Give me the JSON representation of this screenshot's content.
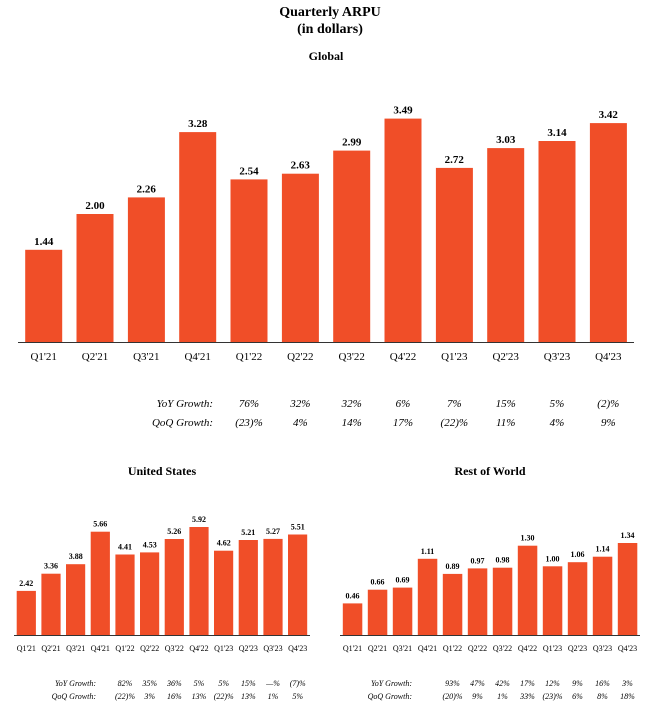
{
  "title": "Quarterly ARPU",
  "subtitle": "(in dollars)",
  "colors": {
    "bar": "#f04e28",
    "axis": "#333333",
    "text": "#111111"
  },
  "chart_data": [
    {
      "type": "bar",
      "title": "Global",
      "categories": [
        "Q1'21",
        "Q2'21",
        "Q3'21",
        "Q4'21",
        "Q1'22",
        "Q2'22",
        "Q3'22",
        "Q4'22",
        "Q1'23",
        "Q2'23",
        "Q3'23",
        "Q4'23"
      ],
      "values": [
        1.44,
        2.0,
        2.26,
        3.28,
        2.54,
        2.63,
        2.99,
        3.49,
        2.72,
        3.03,
        3.14,
        3.42
      ],
      "value_labels": [
        "1.44",
        "2.00",
        "2.26",
        "3.28",
        "2.54",
        "2.63",
        "2.99",
        "3.49",
        "2.72",
        "3.03",
        "3.14",
        "3.42"
      ],
      "ylim": [
        0,
        3.5
      ],
      "growth_rows": [
        {
          "label": "YoY Growth:",
          "values": [
            "76%",
            "32%",
            "32%",
            "6%",
            "7%",
            "15%",
            "5%",
            "(2)%"
          ],
          "start_index": 4
        },
        {
          "label": "QoQ Growth:",
          "values": [
            "(23)%",
            "4%",
            "14%",
            "17%",
            "(22)%",
            "11%",
            "4%",
            "9%"
          ],
          "start_index": 4
        }
      ]
    },
    {
      "type": "bar",
      "title": "United States",
      "categories": [
        "Q1'21",
        "Q2'21",
        "Q3'21",
        "Q4'21",
        "Q1'22",
        "Q2'22",
        "Q3'22",
        "Q4'22",
        "Q1'23",
        "Q2'23",
        "Q3'23",
        "Q4'23"
      ],
      "values": [
        2.42,
        3.36,
        3.88,
        5.66,
        4.41,
        4.53,
        5.26,
        5.92,
        4.62,
        5.21,
        5.27,
        5.51
      ],
      "value_labels": [
        "2.42",
        "3.36",
        "3.88",
        "5.66",
        "4.41",
        "4.53",
        "5.26",
        "5.92",
        "4.62",
        "5.21",
        "5.27",
        "5.51"
      ],
      "ylim": [
        0,
        5.92
      ],
      "growth_rows": [
        {
          "label": "YoY Growth:",
          "values": [
            "82%",
            "35%",
            "36%",
            "5%",
            "5%",
            "15%",
            "—%",
            "(7)%"
          ],
          "start_index": 4
        },
        {
          "label": "QoQ Growth:",
          "values": [
            "(22)%",
            "3%",
            "16%",
            "13%",
            "(22)%",
            "13%",
            "1%",
            "5%"
          ],
          "start_index": 4
        }
      ]
    },
    {
      "type": "bar",
      "title": "Rest of World",
      "categories": [
        "Q1'21",
        "Q2'21",
        "Q3'21",
        "Q4'21",
        "Q1'22",
        "Q2'22",
        "Q3'22",
        "Q4'22",
        "Q1'23",
        "Q2'23",
        "Q3'23",
        "Q4'23"
      ],
      "values": [
        0.46,
        0.66,
        0.69,
        1.11,
        0.89,
        0.97,
        0.98,
        1.3,
        1.0,
        1.06,
        1.14,
        1.34
      ],
      "value_labels": [
        "0.46",
        "0.66",
        "0.69",
        "1.11",
        "0.89",
        "0.97",
        "0.98",
        "1.30",
        "1.00",
        "1.06",
        "1.14",
        "1.34"
      ],
      "ylim": [
        0,
        1.34
      ],
      "growth_rows": [
        {
          "label": "YoY Growth:",
          "values": [
            "93%",
            "47%",
            "42%",
            "17%",
            "12%",
            "9%",
            "16%",
            "3%"
          ],
          "start_index": 4
        },
        {
          "label": "QoQ Growth:",
          "values": [
            "(20)%",
            "9%",
            "1%",
            "33%",
            "(23)%",
            "6%",
            "8%",
            "18%"
          ],
          "start_index": 4
        }
      ]
    }
  ]
}
